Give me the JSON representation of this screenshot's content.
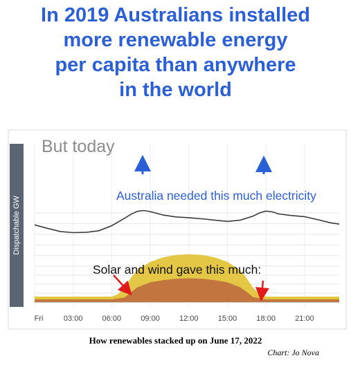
{
  "headline": {
    "lines": [
      "In 2019 Australians installed",
      "more renewable energy",
      "per capita than anywhere",
      "in the world"
    ]
  },
  "chart_data": {
    "type": "area",
    "title": "But today",
    "ylabel": "Dispatchable GW",
    "xlabel": "",
    "ylim": [
      0,
      30
    ],
    "yticks": [
      0,
      2,
      4,
      6,
      8,
      12,
      16,
      20,
      24,
      28
    ],
    "xlim": [
      0,
      23.7
    ],
    "xticks": [
      {
        "x": 0,
        "label": "Fri"
      },
      {
        "x": 3,
        "label": "03:00"
      },
      {
        "x": 6,
        "label": "06:00"
      },
      {
        "x": 9,
        "label": "09:00"
      },
      {
        "x": 12,
        "label": "12:00"
      },
      {
        "x": 15,
        "label": "15:00"
      },
      {
        "x": 18,
        "label": "18:00"
      },
      {
        "x": 21,
        "label": "21:00"
      }
    ],
    "grid": true,
    "colors": {
      "demand": "#3a3a3a",
      "solar": "#e3c43a",
      "wind": "#c0713f",
      "base": "#b9cc55",
      "arrow_blue": "#2b5fd6",
      "arrow_red": "#e01b1b"
    },
    "series": [
      {
        "key": "demand",
        "x": [
          0,
          1,
          2,
          3,
          4,
          5,
          6,
          7,
          7.5,
          8,
          8.5,
          9,
          10,
          11,
          12,
          13,
          14,
          15,
          16,
          17,
          17.5,
          18,
          18.5,
          19,
          20,
          21,
          22,
          23,
          23.7
        ],
        "values": [
          23.5,
          22.2,
          21,
          20.6,
          20.7,
          21.3,
          23.2,
          26,
          27.5,
          28.6,
          28.9,
          28.5,
          27.2,
          26.5,
          26.2,
          25.8,
          25.3,
          24.8,
          25.3,
          26.8,
          28,
          28.7,
          28.4,
          27.6,
          27,
          26.6,
          25.5,
          24.3,
          23.8
        ]
      },
      {
        "key": "solar",
        "x": [
          0,
          6,
          6.5,
          7,
          7.5,
          8,
          9,
          10,
          11,
          12,
          13,
          14,
          15,
          16,
          16.5,
          17,
          17.5,
          18,
          23.7
        ],
        "values": [
          1.2,
          1.2,
          1.8,
          3.3,
          5.4,
          7.2,
          9.6,
          11.3,
          12.2,
          12.5,
          12.2,
          11.3,
          9.6,
          7.1,
          5.3,
          3.2,
          1.8,
          1.2,
          1.2
        ]
      },
      {
        "key": "wind",
        "x": [
          0,
          6,
          7,
          7.5,
          8,
          9,
          10,
          11,
          12,
          13,
          14,
          15,
          16,
          16.5,
          17,
          18,
          23.7
        ],
        "values": [
          0.6,
          0.6,
          1,
          2.2,
          3.3,
          4.4,
          4.9,
          5.2,
          5.3,
          5.2,
          4.9,
          4.4,
          3.3,
          2.3,
          1.1,
          0.6,
          0.6
        ]
      }
    ],
    "annotations": {
      "demand_note": "Australia needed this much electricity",
      "supply_note": "Solar and wind gave this much:"
    }
  },
  "caption": "How renewables stacked up on June 17, 2022",
  "credit": "Chart: Jo Nova"
}
